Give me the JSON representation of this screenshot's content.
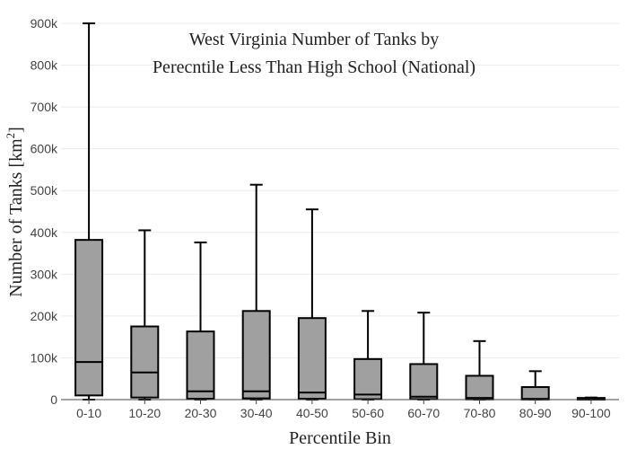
{
  "chart_data": {
    "type": "box",
    "title_lines": [
      "West Virginia Number of Tanks by",
      "Perecntile Less Than High School (National)"
    ],
    "xlabel": "Percentile Bin",
    "ylabel_main": "Number of Tanks  [km",
    "ylabel_sup": "2",
    "ylabel_end": "]",
    "ylim": [
      0,
      900000
    ],
    "y_ticks": [
      0,
      100000,
      200000,
      300000,
      400000,
      500000,
      600000,
      700000,
      800000,
      900000
    ],
    "y_tick_labels": [
      "0",
      "100k",
      "200k",
      "300k",
      "400k",
      "500k",
      "600k",
      "700k",
      "800k",
      "900k"
    ],
    "grid": true,
    "categories": [
      "0-10",
      "10-20",
      "20-30",
      "30-40",
      "40-50",
      "50-60",
      "60-70",
      "70-80",
      "80-90",
      "90-100"
    ],
    "boxes": [
      {
        "category": "0-10",
        "min": 0,
        "q1": 10000,
        "median": 90000,
        "q3": 382000,
        "max": 900000
      },
      {
        "category": "10-20",
        "min": 0,
        "q1": 5000,
        "median": 65000,
        "q3": 175000,
        "max": 405000
      },
      {
        "category": "20-30",
        "min": 0,
        "q1": 2000,
        "median": 20000,
        "q3": 163000,
        "max": 376000
      },
      {
        "category": "30-40",
        "min": 0,
        "q1": 3000,
        "median": 20000,
        "q3": 212000,
        "max": 514000
      },
      {
        "category": "40-50",
        "min": 0,
        "q1": 2000,
        "median": 17000,
        "q3": 195000,
        "max": 455000
      },
      {
        "category": "50-60",
        "min": 0,
        "q1": 1000,
        "median": 12000,
        "q3": 97000,
        "max": 212000
      },
      {
        "category": "60-70",
        "min": 0,
        "q1": 1000,
        "median": 7000,
        "q3": 85000,
        "max": 208000
      },
      {
        "category": "70-80",
        "min": 0,
        "q1": 500,
        "median": 4000,
        "q3": 57000,
        "max": 140000
      },
      {
        "category": "80-90",
        "min": 0,
        "q1": 200,
        "median": 2000,
        "q3": 30000,
        "max": 68000
      },
      {
        "category": "90-100",
        "min": 0,
        "q1": 0,
        "median": 1000,
        "q3": 4000,
        "max": 5000
      }
    ],
    "colors": {
      "box_fill": "#a0a0a0",
      "box_stroke": "#000000",
      "grid": "#ececec"
    }
  }
}
